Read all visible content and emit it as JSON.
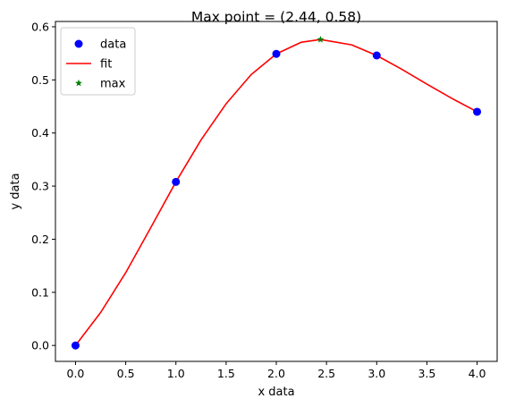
{
  "chart_data": {
    "type": "scatter",
    "title": "Max point = (2.44, 0.58)",
    "xlabel": "x data",
    "ylabel": "y data",
    "xlim": [
      -0.2,
      4.2
    ],
    "ylim": [
      -0.03,
      0.61
    ],
    "xticks": [
      "0.0",
      "0.5",
      "1.0",
      "1.5",
      "2.0",
      "2.5",
      "3.0",
      "3.5",
      "4.0"
    ],
    "yticks": [
      "0.0",
      "0.1",
      "0.2",
      "0.3",
      "0.4",
      "0.5",
      "0.6"
    ],
    "grid": false,
    "legend_position": "upper-left",
    "series": [
      {
        "name": "data",
        "kind": "markers",
        "marker": "circle",
        "color": "#0000ff",
        "points": [
          [
            0.0,
            0.0
          ],
          [
            1.0,
            0.308
          ],
          [
            2.0,
            0.549
          ],
          [
            3.0,
            0.546
          ],
          [
            4.0,
            0.44
          ]
        ]
      },
      {
        "name": "fit",
        "kind": "line",
        "color": "#ff0000",
        "points": [
          [
            0.0,
            0.0
          ],
          [
            0.25,
            0.062
          ],
          [
            0.5,
            0.137
          ],
          [
            0.75,
            0.222
          ],
          [
            1.0,
            0.308
          ],
          [
            1.25,
            0.387
          ],
          [
            1.5,
            0.455
          ],
          [
            1.75,
            0.51
          ],
          [
            2.0,
            0.549
          ],
          [
            2.25,
            0.571
          ],
          [
            2.44,
            0.576
          ],
          [
            2.75,
            0.566
          ],
          [
            3.0,
            0.546
          ],
          [
            3.25,
            0.52
          ],
          [
            3.5,
            0.492
          ],
          [
            3.75,
            0.465
          ],
          [
            4.0,
            0.44
          ]
        ]
      },
      {
        "name": "max",
        "kind": "markers",
        "marker": "star",
        "color": "#008000",
        "points": [
          [
            2.44,
            0.576
          ]
        ]
      }
    ]
  }
}
